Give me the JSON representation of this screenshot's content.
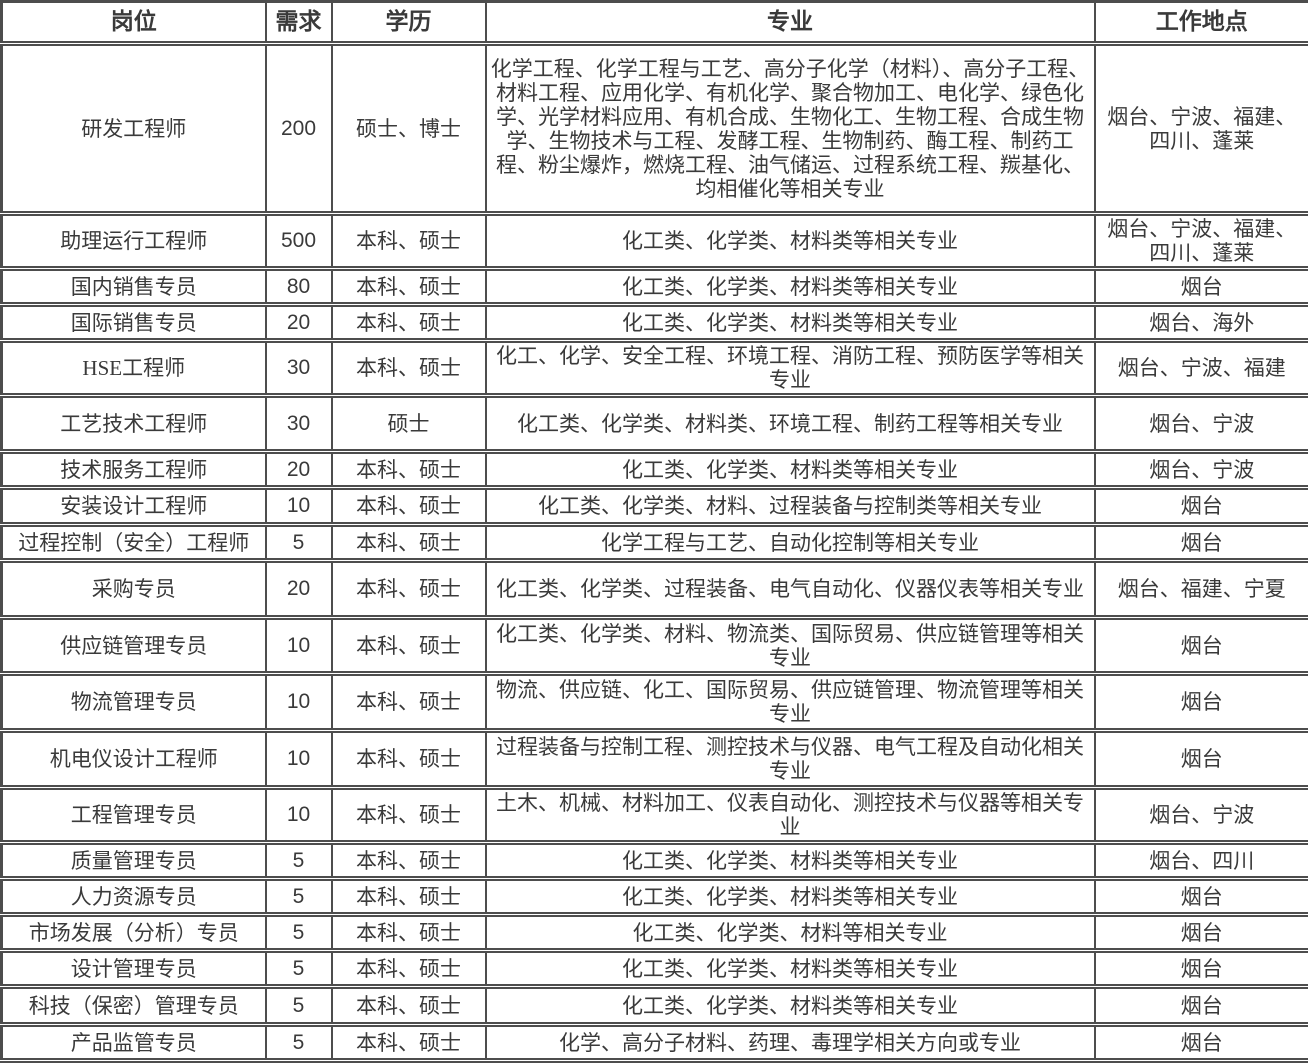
{
  "colors": {
    "border": "#4d4d4d",
    "text": "#3a3a3a",
    "background": "#ffffff"
  },
  "table": {
    "columns": [
      {
        "key": "position",
        "label": "岗位"
      },
      {
        "key": "demand",
        "label": "需求"
      },
      {
        "key": "education",
        "label": "学历"
      },
      {
        "key": "major",
        "label": "专业"
      },
      {
        "key": "location",
        "label": "工作地点"
      }
    ],
    "rows": [
      {
        "position": "研发工程师",
        "demand": "200",
        "education": "硕士、博士",
        "major": "化学工程、化学工程与工艺、高分子化学（材料）、高分子工程、材料工程、应用化学、有机化学、聚合物加工、电化学、绿色化学、光学材料应用、有机合成、生物化工、生物工程、合成生物学、生物技术与工程、发酵工程、生物制药、酶工程、制药工程、粉尘爆炸，燃烧工程、油气储运、过程系统工程、羰基化、均相催化等相关专业",
        "location": "烟台、宁波、福建、四川、蓬莱"
      },
      {
        "position": "助理运行工程师",
        "demand": "500",
        "education": "本科、硕士",
        "major": "化工类、化学类、材料类等相关专业",
        "location": "烟台、宁波、福建、四川、蓬莱"
      },
      {
        "position": "国内销售专员",
        "demand": "80",
        "education": "本科、硕士",
        "major": "化工类、化学类、材料类等相关专业",
        "location": "烟台"
      },
      {
        "position": "国际销售专员",
        "demand": "20",
        "education": "本科、硕士",
        "major": "化工类、化学类、材料类等相关专业",
        "location": "烟台、海外"
      },
      {
        "position": "HSE工程师",
        "demand": "30",
        "education": "本科、硕士",
        "major": "化工、化学、安全工程、环境工程、消防工程、预防医学等相关专业",
        "location": "烟台、宁波、福建"
      },
      {
        "position": "工艺技术工程师",
        "demand": "30",
        "education": "硕士",
        "major": "化工类、化学类、材料类、环境工程、制药工程等相关专业",
        "location": "烟台、宁波"
      },
      {
        "position": "技术服务工程师",
        "demand": "20",
        "education": "本科、硕士",
        "major": "化工类、化学类、材料类等相关专业",
        "location": "烟台、宁波"
      },
      {
        "position": "安装设计工程师",
        "demand": "10",
        "education": "本科、硕士",
        "major": "化工类、化学类、材料、过程装备与控制类等相关专业",
        "location": "烟台"
      },
      {
        "position": "过程控制（安全）工程师",
        "demand": "5",
        "education": "本科、硕士",
        "major": "化学工程与工艺、自动化控制等相关专业",
        "location": "烟台"
      },
      {
        "position": "采购专员",
        "demand": "20",
        "education": "本科、硕士",
        "major": "化工类、化学类、过程装备、电气自动化、仪器仪表等相关专业",
        "location": "烟台、福建、宁夏"
      },
      {
        "position": "供应链管理专员",
        "demand": "10",
        "education": "本科、硕士",
        "major": "化工类、化学类、材料、物流类、国际贸易、供应链管理等相关专业",
        "location": "烟台"
      },
      {
        "position": "物流管理专员",
        "demand": "10",
        "education": "本科、硕士",
        "major": "物流、供应链、化工、国际贸易、供应链管理、物流管理等相关专业",
        "location": "烟台"
      },
      {
        "position": "机电仪设计工程师",
        "demand": "10",
        "education": "本科、硕士",
        "major": "过程装备与控制工程、测控技术与仪器、电气工程及自动化相关专业",
        "location": "烟台"
      },
      {
        "position": "工程管理专员",
        "demand": "10",
        "education": "本科、硕士",
        "major": "土木、机械、材料加工、仪表自动化、测控技术与仪器等相关专业",
        "location": "烟台、宁波"
      },
      {
        "position": "质量管理专员",
        "demand": "5",
        "education": "本科、硕士",
        "major": "化工类、化学类、材料类等相关专业",
        "location": "烟台、四川"
      },
      {
        "position": "人力资源专员",
        "demand": "5",
        "education": "本科、硕士",
        "major": "化工类、化学类、材料类等相关专业",
        "location": "烟台"
      },
      {
        "position": "市场发展（分析）专员",
        "demand": "5",
        "education": "本科、硕士",
        "major": "化工类、化学类、材料等相关专业",
        "location": "烟台"
      },
      {
        "position": "设计管理专员",
        "demand": "5",
        "education": "本科、硕士",
        "major": "化工类、化学类、材料类等相关专业",
        "location": "烟台"
      },
      {
        "position": "科技（保密）管理专员",
        "demand": "5",
        "education": "本科、硕士",
        "major": "化工类、化学类、材料类等相关专业",
        "location": "烟台"
      },
      {
        "position": "产品监管专员",
        "demand": "5",
        "education": "本科、硕士",
        "major": "化学、高分子材料、药理、毒理学相关方向或专业",
        "location": "烟台"
      }
    ]
  }
}
